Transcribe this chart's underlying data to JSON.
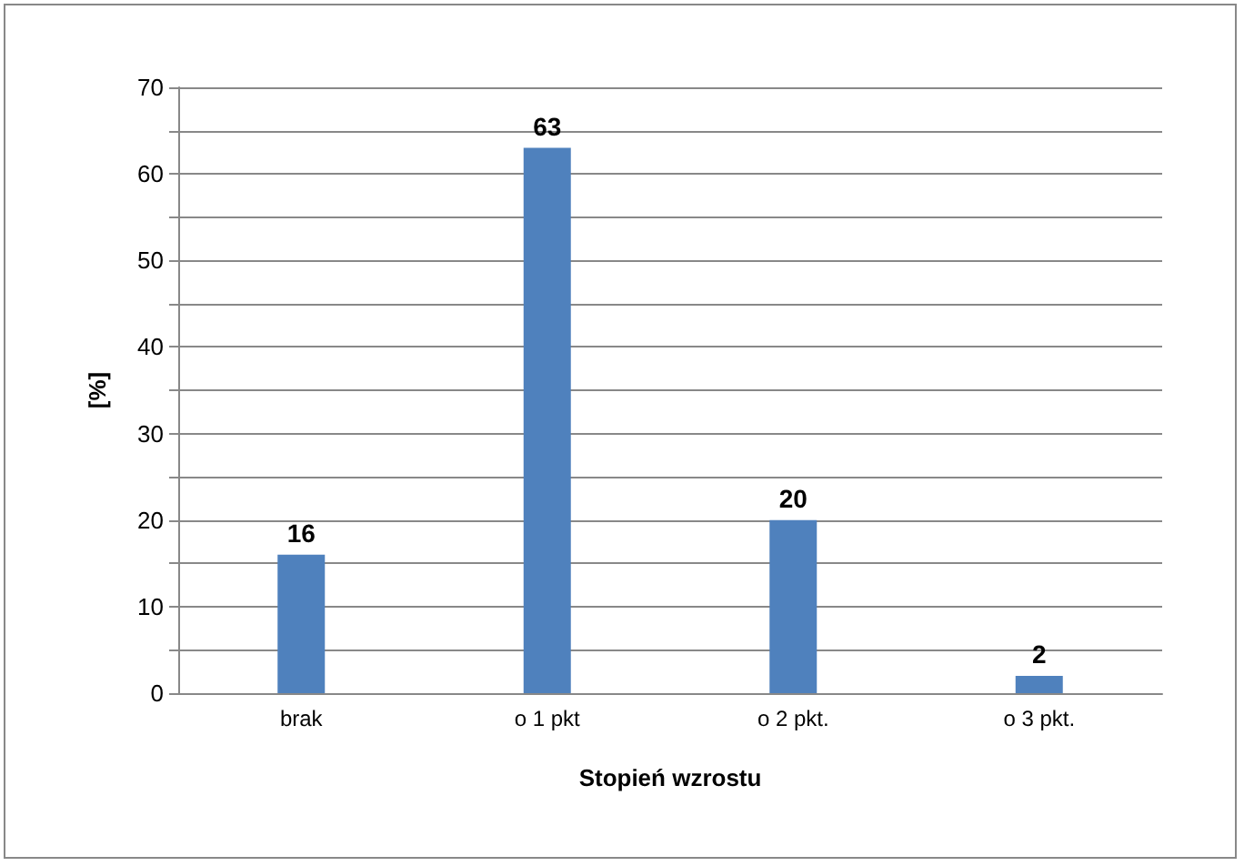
{
  "chart_data": {
    "type": "bar",
    "xlabel": "Stopień wzrostu",
    "ylabel": "[%]",
    "categories": [
      "brak",
      "o 1 pkt",
      "o 2 pkt.",
      "o 3 pkt."
    ],
    "values": [
      16,
      63,
      20,
      2
    ],
    "color": "#4f81bd",
    "data_labels": true,
    "ylim": [
      0,
      70
    ],
    "yticks": [
      0,
      {
        "value": 5,
        "label": null
      },
      10,
      {
        "value": 15,
        "label": null
      },
      20,
      {
        "value": 25,
        "label": null
      },
      30,
      {
        "value": 35,
        "label": null
      },
      40,
      {
        "value": 45,
        "label": null
      },
      50,
      {
        "value": 55,
        "label": null
      },
      60,
      {
        "value": 65,
        "label": null
      },
      70
    ],
    "grid": "y"
  }
}
